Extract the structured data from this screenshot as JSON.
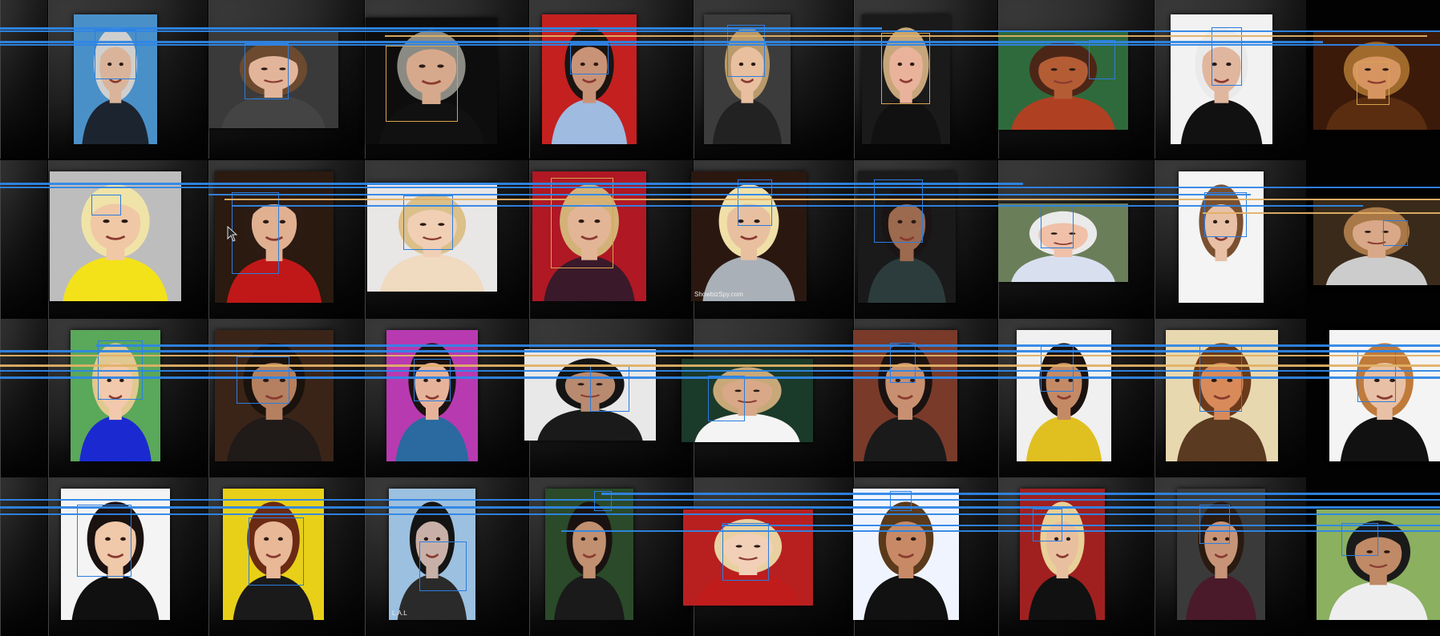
{
  "colors": {
    "blue_box": "#2a7de1",
    "orange_box": "#d9a44e",
    "blue_line": "#2f86e6",
    "orange_line": "#e2b166",
    "cell_bg": "#1c1c1c"
  },
  "cursor": {
    "icon": "mouse-pointer-icon"
  },
  "watermarks": {
    "r2c5": "ShowbizSpy.com",
    "r4c3": "L.A.L"
  },
  "rows": [
    {
      "row": 1,
      "faces": [
        {
          "id": "r1c1",
          "skin": "#d9b49a",
          "bg": "#4a90c8",
          "hair": "#cfcfcf",
          "cloth": "#1c2430",
          "box": "blue"
        },
        {
          "id": "r1c2",
          "skin": "#e2b59a",
          "bg": "#3a3a3a",
          "hair": "#6b4a2f",
          "cloth": "#444",
          "box": "blue"
        },
        {
          "id": "r1c3",
          "skin": "#d7a98c",
          "bg": "#0d0d0d",
          "hair": "#8b8b84",
          "cloth": "#111",
          "box": "orange"
        },
        {
          "id": "r1c4",
          "skin": "#c99377",
          "bg": "#c42020",
          "hair": "#1a1410",
          "cloth": "#9fbbe0",
          "box": "blue"
        },
        {
          "id": "r1c5",
          "skin": "#e8c0a0",
          "bg": "#3c3c3c",
          "hair": "#b99a6b",
          "cloth": "#222",
          "box": "blue"
        },
        {
          "id": "r1c6",
          "skin": "#e9b39b",
          "bg": "#1a1a1a",
          "hair": "#c6a67a",
          "cloth": "#111",
          "box": "orange"
        },
        {
          "id": "r1c7",
          "skin": "#b45d35",
          "bg": "#2f6a3c",
          "hair": "#4b2617",
          "cloth": "#b04022",
          "box": "blue"
        },
        {
          "id": "r1c8",
          "skin": "#e1b69e",
          "bg": "#f2f2f2",
          "hair": "#eaeaea",
          "cloth": "#111",
          "box": "blue"
        },
        {
          "id": "r1c9",
          "skin": "#d69560",
          "bg": "#3b1a0a",
          "hair": "#a06a2c",
          "cloth": "#5a2d10",
          "box": "orange"
        }
      ]
    },
    {
      "row": 2,
      "faces": [
        {
          "id": "r2c1",
          "skin": "#f0c8a6",
          "bg": "#bdbdbd",
          "hair": "#f0e3a8",
          "cloth": "#f3e21a",
          "box": "blue"
        },
        {
          "id": "r2c2",
          "skin": "#e0b090",
          "bg": "#2a1a10",
          "hair": "#2b1b12",
          "cloth": "#c01818",
          "box": "blue"
        },
        {
          "id": "r2c3",
          "skin": "#f0cfb5",
          "bg": "#e9e6e6",
          "hair": "#dcc08a",
          "cloth": "#f0dac0",
          "box": "blue"
        },
        {
          "id": "r2c4",
          "skin": "#e3b597",
          "bg": "#b01824",
          "hair": "#d3b278",
          "cloth": "#3a1a2a",
          "box": "orange"
        },
        {
          "id": "r2c5",
          "skin": "#e8c0a0",
          "bg": "#2a1810",
          "hair": "#f0e0a8",
          "cloth": "#aab0b8",
          "box": "blue"
        },
        {
          "id": "r2c6",
          "skin": "#9c6a4e",
          "bg": "#1a1a1a",
          "hair": "#1a1414",
          "cloth": "#2c3c3c",
          "box": "blue"
        },
        {
          "id": "r2c7",
          "skin": "#f0c0a8",
          "bg": "#6a7e5a",
          "hair": "#eaeaea",
          "cloth": "#d8e0f0",
          "box": "blue"
        },
        {
          "id": "r2c8",
          "skin": "#e8c0a6",
          "bg": "#f4f4f4",
          "hair": "#7a5030",
          "cloth": "#f4f4f4",
          "box": "blue"
        },
        {
          "id": "r2c9",
          "skin": "#d8a888",
          "bg": "#3a2a1a",
          "hair": "#a87848",
          "cloth": "#ccc",
          "box": "blue"
        }
      ]
    },
    {
      "row": 3,
      "faces": [
        {
          "id": "r3c1",
          "skin": "#f2c9ac",
          "bg": "#5aa85a",
          "hair": "#e0c890",
          "cloth": "#1a2ad0",
          "box": "blue"
        },
        {
          "id": "r3c2",
          "skin": "#b48060",
          "bg": "#3a2418",
          "hair": "#1a120c",
          "cloth": "#201a18",
          "box": "blue"
        },
        {
          "id": "r3c3",
          "skin": "#e6b39a",
          "bg": "#b83ab0",
          "hair": "#1a1210",
          "cloth": "#2a6aa0",
          "box": "blue"
        },
        {
          "id": "r3c4",
          "skin": "#b88a70",
          "bg": "#e8e8e8",
          "hair": "#141414",
          "cloth": "#1a1a1a",
          "box": "blue"
        },
        {
          "id": "r3c5",
          "skin": "#d8a888",
          "bg": "#1a3a2a",
          "hair": "#c8a878",
          "cloth": "#f4f4f4",
          "box": "blue"
        },
        {
          "id": "r3c6",
          "skin": "#c89070",
          "bg": "#7a3a2a",
          "hair": "#1a1210",
          "cloth": "#1a1a1a",
          "box": "blue"
        },
        {
          "id": "r3c7",
          "skin": "#c48a66",
          "bg": "#f0f0f0",
          "hair": "#1a1210",
          "cloth": "#e0c020",
          "box": "blue"
        },
        {
          "id": "r3c8",
          "skin": "#d88a5a",
          "bg": "#e8d8b0",
          "hair": "#6a3a1a",
          "cloth": "#5a3a20",
          "box": "blue"
        },
        {
          "id": "r3c9",
          "skin": "#e8c0a6",
          "bg": "#f4f4f4",
          "hair": "#c07a3a",
          "cloth": "#111",
          "box": "blue"
        }
      ]
    },
    {
      "row": 4,
      "faces": [
        {
          "id": "r4c1",
          "skin": "#f0c8aa",
          "bg": "#f4f4f4",
          "hair": "#1a1210",
          "cloth": "#101010",
          "box": "blue"
        },
        {
          "id": "r4c2",
          "skin": "#e8b897",
          "bg": "#e8d018",
          "hair": "#6a2a14",
          "cloth": "#1a1a1a",
          "box": "blue"
        },
        {
          "id": "r4c3",
          "skin": "#c8b0a8",
          "bg": "#9cc0e0",
          "hair": "#141414",
          "cloth": "#2a2a2a",
          "box": "blue"
        },
        {
          "id": "r4c4",
          "skin": "#c09070",
          "bg": "#2a4a2a",
          "hair": "#1a1210",
          "cloth": "#1a1a1a",
          "box": "blue"
        },
        {
          "id": "r4c5",
          "skin": "#f2d0b8",
          "bg": "#b82020",
          "hair": "#e8d0a0",
          "cloth": "#c01c1c",
          "box": "blue"
        },
        {
          "id": "r4c6",
          "skin": "#c88a66",
          "bg": "#f0f4ff",
          "hair": "#5a3a1a",
          "cloth": "#111",
          "box": "blue"
        },
        {
          "id": "r4c7",
          "skin": "#e8c0a0",
          "bg": "#a02020",
          "hair": "#e8d098",
          "cloth": "#111",
          "box": "blue"
        },
        {
          "id": "r4c8",
          "skin": "#c89478",
          "bg": "#3a3a3a",
          "hair": "#2a1a10",
          "cloth": "#4a1a2a",
          "box": "blue"
        },
        {
          "id": "r4c9",
          "skin": "#c08a66",
          "bg": "#8ab060",
          "hair": "#1a1a1a",
          "cloth": "#eee",
          "box": "blue"
        }
      ]
    }
  ]
}
